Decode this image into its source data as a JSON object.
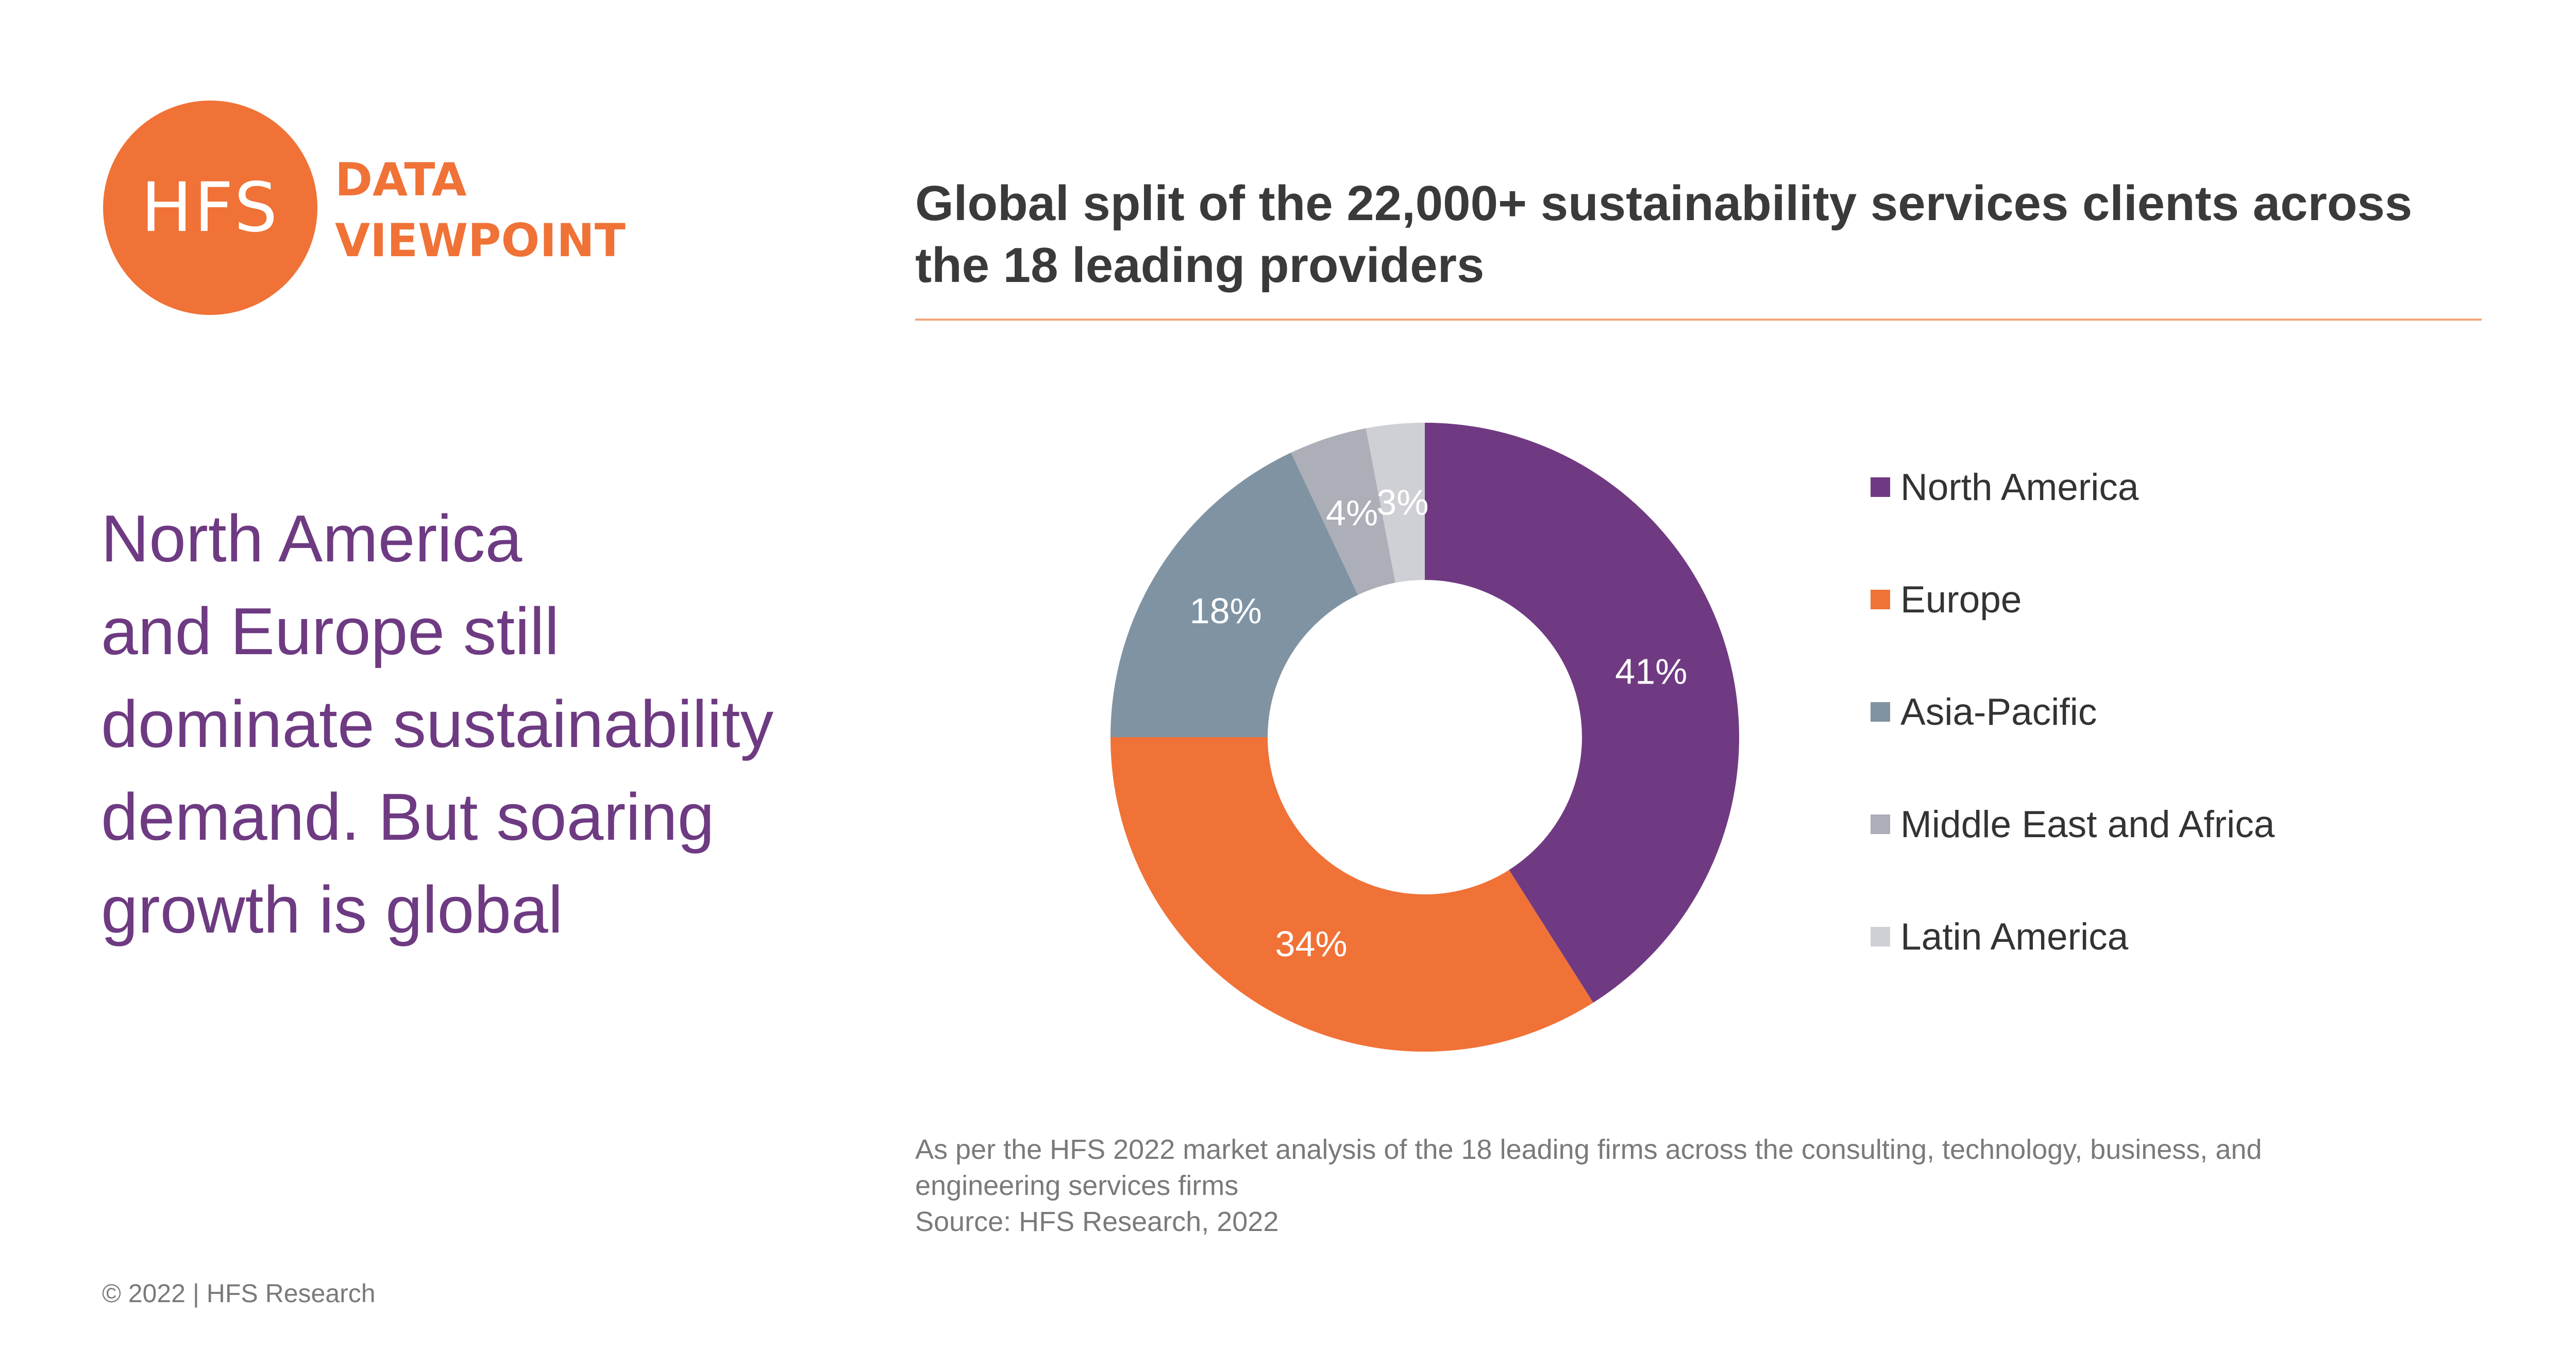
{
  "brand": {
    "logo_text": "HFS",
    "tag_line1": "DATA",
    "tag_line2": "VIEWPOINT",
    "accent_color": "#F07237"
  },
  "headline": {
    "lines": [
      "North America",
      "and Europe still",
      "dominate sustainability",
      "demand. But soaring",
      "growth is global"
    ],
    "color": "#6E3A82"
  },
  "chart_data": {
    "type": "pie",
    "donut": true,
    "title_lines": [
      "Global split of the 22,000+ sustainability services clients across",
      "the 18 leading providers"
    ],
    "categories": [
      "North America",
      "Europe",
      "Asia-Pacific",
      "Middle East and Africa",
      "Latin America"
    ],
    "values": [
      41,
      34,
      18,
      4,
      3
    ],
    "labels": [
      "41%",
      "34%",
      "18%",
      "4%",
      "3%"
    ],
    "colors": [
      "#703A82",
      "#F07237",
      "#7F93A3",
      "#ACAFB7",
      "#CFCFD6"
    ],
    "legend_position": "right"
  },
  "footnote": {
    "lines": [
      "As per the HFS 2022 market analysis of the 18 leading firms across the consulting, technology, business, and",
      "engineering services firms",
      "Source: HFS Research, 2022"
    ]
  },
  "copyright": "© 2022 | HFS Research"
}
